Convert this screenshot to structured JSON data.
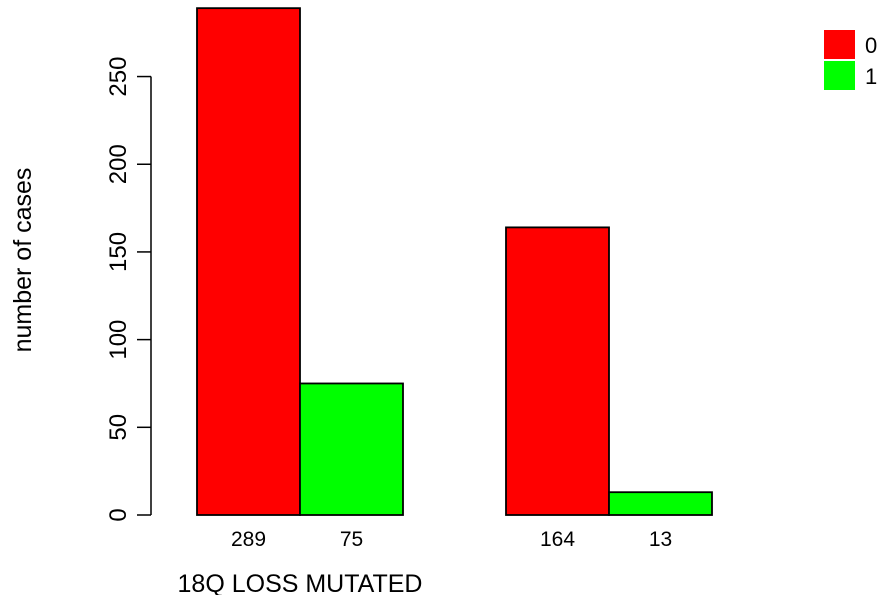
{
  "chart_data": {
    "type": "bar",
    "title": "",
    "xlabel": "18Q LOSS MUTATED",
    "ylabel": "number of cases",
    "ylim": [
      0,
      290
    ],
    "yticks": [
      0,
      50,
      100,
      150,
      200,
      250
    ],
    "grid": false,
    "legend_position": "top-right",
    "groups": [
      "",
      ""
    ],
    "series": [
      {
        "name": "0",
        "color": "#ff0000",
        "values": [
          289,
          164
        ]
      },
      {
        "name": "1",
        "color": "#00ff00",
        "values": [
          75,
          13
        ]
      }
    ],
    "bar_labels": [
      [
        "289",
        "75"
      ],
      [
        "164",
        "13"
      ]
    ]
  }
}
